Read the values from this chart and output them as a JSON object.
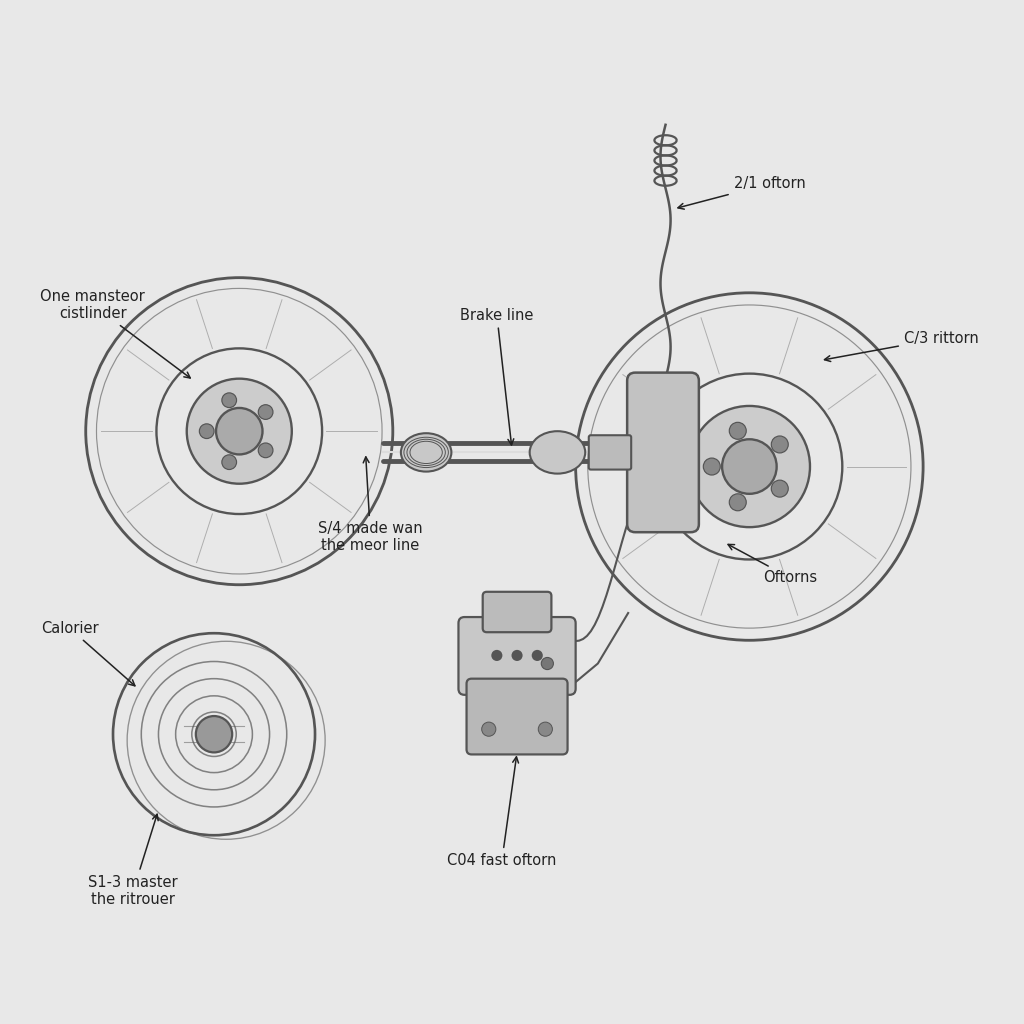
{
  "background_color": "#e8e8e8",
  "diagram_bg": "#ebebeb",
  "line_color": "#555555",
  "text_color": "#222222",
  "labels": {
    "one_master_cylinder": "One mansteor\ncistlinder",
    "brake_line": "Brake line",
    "s4_made_wan": "S/4 made wan\nthe meor line",
    "two_one_oftorn": "2/1 oftorn",
    "c3_rittorn": "C/3 rittorn",
    "oftorns": "Oftorns",
    "calorier": "Calorier",
    "s13_master": "S1-3 master\nthe ritrouer",
    "c04_fast_oftorn": "C04 fast oftorn"
  },
  "font_size": 10.5
}
